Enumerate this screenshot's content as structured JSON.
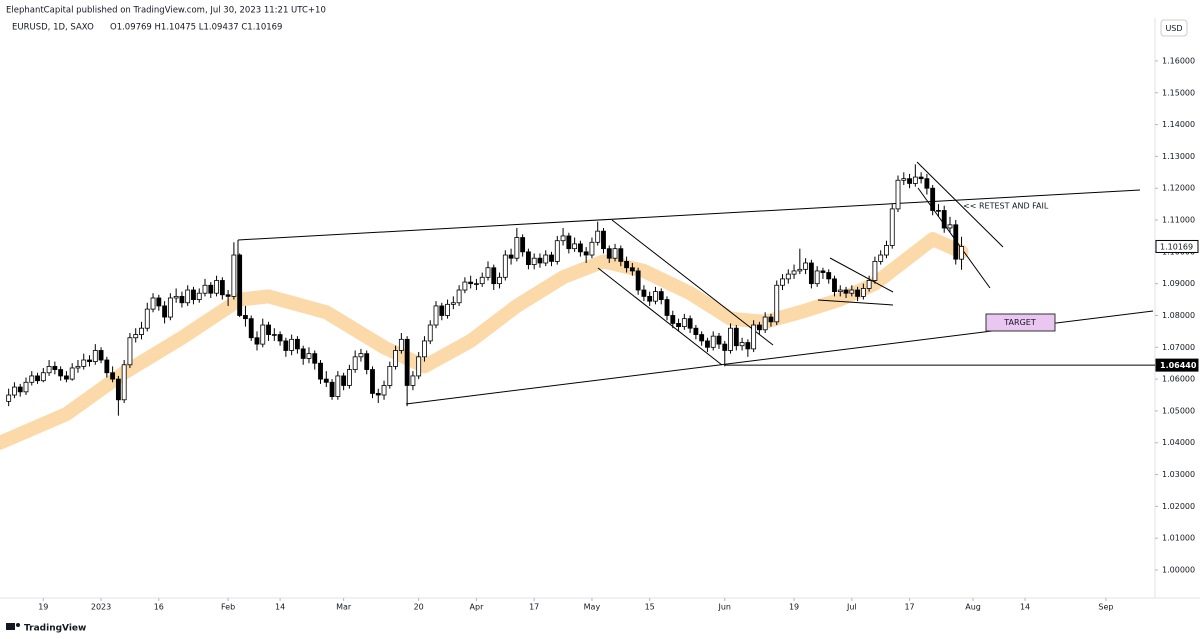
{
  "header": {
    "byline": "ElephantCapital published on TradingView.com, Jul 30, 2023 11:21 UTC+10",
    "symbol": "EURUSD, 1D, SAXO",
    "ohlc": "O1.09769  H1.10475  L1.09437  C1.10169",
    "currency": "USD"
  },
  "footer": {
    "brand": "TradingView"
  },
  "chart_data": {
    "type": "candlestick",
    "up_color": "#ffffff",
    "down_color": "#000000",
    "border_color": "#000000",
    "grid": false,
    "xlim": [
      -1.5,
      198.5
    ],
    "ylim": [
      0.9912,
      1.1735
    ],
    "yticks": [
      {
        "value": 1.0,
        "label": "1.00000"
      },
      {
        "value": 1.01,
        "label": "1.01000"
      },
      {
        "value": 1.02,
        "label": "1.02000"
      },
      {
        "value": 1.03,
        "label": "1.03000"
      },
      {
        "value": 1.04,
        "label": "1.04000"
      },
      {
        "value": 1.05,
        "label": "1.05000"
      },
      {
        "value": 1.06,
        "label": "1.06000"
      },
      {
        "value": 1.07,
        "label": "1.07000"
      },
      {
        "value": 1.08,
        "label": "1.08000"
      },
      {
        "value": 1.09,
        "label": "1.09000"
      },
      {
        "value": 1.1,
        "label": "1.10000"
      },
      {
        "value": 1.11,
        "label": "1.11000"
      },
      {
        "value": 1.12,
        "label": "1.12000"
      },
      {
        "value": 1.13,
        "label": "1.13000"
      },
      {
        "value": 1.14,
        "label": "1.14000"
      },
      {
        "value": 1.15,
        "label": "1.15000"
      },
      {
        "value": 1.16,
        "label": "1.16000"
      }
    ],
    "xticks": [
      {
        "value": 6,
        "label": "19"
      },
      {
        "value": 16,
        "label": "2023"
      },
      {
        "value": 26,
        "label": "16"
      },
      {
        "value": 38,
        "label": "Feb"
      },
      {
        "value": 47,
        "label": "14"
      },
      {
        "value": 58,
        "label": "Mar"
      },
      {
        "value": 71,
        "label": "20"
      },
      {
        "value": 81,
        "label": "Apr"
      },
      {
        "value": 91,
        "label": "17"
      },
      {
        "value": 101,
        "label": "May"
      },
      {
        "value": 111,
        "label": "15"
      },
      {
        "value": 124,
        "label": "Jun"
      },
      {
        "value": 136,
        "label": "19"
      },
      {
        "value": 146,
        "label": "Jul"
      },
      {
        "value": 156,
        "label": "17"
      },
      {
        "value": 167,
        "label": "Aug"
      },
      {
        "value": 176,
        "label": "14"
      },
      {
        "value": 190,
        "label": "Sep"
      }
    ],
    "candles": [
      [
        1.053,
        1.057,
        1.0515,
        1.055
      ],
      [
        1.055,
        1.059,
        1.054,
        1.0575
      ],
      [
        1.0575,
        1.0585,
        1.0545,
        1.056
      ],
      [
        1.056,
        1.0605,
        1.055,
        1.059
      ],
      [
        1.059,
        1.0625,
        1.058,
        1.061
      ],
      [
        1.061,
        1.062,
        1.0585,
        1.0595
      ],
      [
        1.0595,
        1.0635,
        1.059,
        1.062
      ],
      [
        1.062,
        1.066,
        1.061,
        1.064
      ],
      [
        1.064,
        1.0655,
        1.0615,
        1.063
      ],
      [
        1.063,
        1.064,
        1.0595,
        1.061
      ],
      [
        1.061,
        1.0625,
        1.059,
        1.06
      ],
      [
        1.06,
        1.065,
        1.0595,
        1.0635
      ],
      [
        1.0635,
        1.066,
        1.062,
        1.064
      ],
      [
        1.064,
        1.068,
        1.063,
        1.066
      ],
      [
        1.066,
        1.0675,
        1.064,
        1.0655
      ],
      [
        1.0655,
        1.071,
        1.0645,
        1.069
      ],
      [
        1.069,
        1.07,
        1.065,
        1.066
      ],
      [
        1.066,
        1.067,
        1.0605,
        1.062
      ],
      [
        1.062,
        1.064,
        1.059,
        1.06
      ],
      [
        1.06,
        1.061,
        1.0485,
        1.0535
      ],
      [
        1.0535,
        1.066,
        1.0525,
        1.0645
      ],
      [
        1.0645,
        1.0745,
        1.0635,
        1.073
      ],
      [
        1.073,
        1.076,
        1.0715,
        1.074
      ],
      [
        1.074,
        1.078,
        1.0725,
        1.076
      ],
      [
        1.076,
        1.084,
        1.075,
        1.082
      ],
      [
        1.082,
        1.087,
        1.081,
        1.0855
      ],
      [
        1.0855,
        1.0865,
        1.0815,
        1.083
      ],
      [
        1.083,
        1.0845,
        1.0775,
        1.0795
      ],
      [
        1.0795,
        1.087,
        1.0785,
        1.0855
      ],
      [
        1.0855,
        1.0885,
        1.084,
        1.086
      ],
      [
        1.086,
        1.0875,
        1.0825,
        1.084
      ],
      [
        1.084,
        1.0895,
        1.083,
        1.088
      ],
      [
        1.088,
        1.089,
        1.0835,
        1.085
      ],
      [
        1.085,
        1.0885,
        1.084,
        1.087
      ],
      [
        1.087,
        1.0915,
        1.086,
        1.0895
      ],
      [
        1.0895,
        1.0905,
        1.0855,
        1.087
      ],
      [
        1.087,
        1.0925,
        1.086,
        1.091
      ],
      [
        1.091,
        1.092,
        1.085,
        1.0865
      ],
      [
        1.0865,
        1.088,
        1.083,
        1.086
      ],
      [
        1.086,
        1.103,
        1.085,
        1.099
      ],
      [
        1.099,
        1.0995,
        1.0795,
        1.08
      ],
      [
        1.08,
        1.083,
        1.0765,
        1.079
      ],
      [
        1.079,
        1.08,
        1.072,
        1.073
      ],
      [
        1.073,
        1.075,
        1.069,
        1.071
      ],
      [
        1.071,
        1.079,
        1.07,
        1.077
      ],
      [
        1.077,
        1.078,
        1.072,
        1.074
      ],
      [
        1.074,
        1.076,
        1.072,
        1.074
      ],
      [
        1.074,
        1.075,
        1.0705,
        1.072
      ],
      [
        1.072,
        1.073,
        1.067,
        1.069
      ],
      [
        1.069,
        1.074,
        1.0675,
        1.0725
      ],
      [
        1.0725,
        1.0735,
        1.068,
        1.0695
      ],
      [
        1.0695,
        1.0705,
        1.0645,
        1.0665
      ],
      [
        1.0665,
        1.07,
        1.065,
        1.068
      ],
      [
        1.068,
        1.069,
        1.063,
        1.065
      ],
      [
        1.065,
        1.066,
        1.0585,
        1.06
      ],
      [
        1.06,
        1.0625,
        1.0575,
        1.059
      ],
      [
        1.059,
        1.06,
        1.0535,
        1.0545
      ],
      [
        1.0545,
        1.0625,
        1.0535,
        1.061
      ],
      [
        1.061,
        1.062,
        1.0565,
        1.058
      ],
      [
        1.058,
        1.0645,
        1.057,
        1.063
      ],
      [
        1.063,
        1.069,
        1.062,
        1.067
      ],
      [
        1.067,
        1.0695,
        1.0655,
        1.068
      ],
      [
        1.068,
        1.069,
        1.0615,
        1.063
      ],
      [
        1.063,
        1.064,
        1.054,
        1.0555
      ],
      [
        1.0555,
        1.057,
        1.0525,
        1.055
      ],
      [
        1.055,
        1.0595,
        1.0535,
        1.058
      ],
      [
        1.058,
        1.0655,
        1.057,
        1.064
      ],
      [
        1.064,
        1.0705,
        1.063,
        1.069
      ],
      [
        1.069,
        1.0745,
        1.068,
        1.0725
      ],
      [
        1.0725,
        1.0735,
        1.0515,
        1.058
      ],
      [
        1.058,
        1.0625,
        1.0565,
        1.061
      ],
      [
        1.061,
        1.0685,
        1.06,
        1.067
      ],
      [
        1.067,
        1.0735,
        1.0655,
        1.072
      ],
      [
        1.072,
        1.0785,
        1.071,
        1.077
      ],
      [
        1.077,
        1.0845,
        1.076,
        1.083
      ],
      [
        1.083,
        1.084,
        1.0785,
        1.08
      ],
      [
        1.08,
        1.085,
        1.079,
        1.0835
      ],
      [
        1.0835,
        1.086,
        1.082,
        1.084
      ],
      [
        1.084,
        1.0895,
        1.083,
        1.088
      ],
      [
        1.088,
        1.092,
        1.087,
        1.0905
      ],
      [
        1.0905,
        1.0925,
        1.0885,
        1.09
      ],
      [
        1.09,
        1.0915,
        1.088,
        1.09
      ],
      [
        1.09,
        1.0935,
        1.089,
        1.092
      ],
      [
        1.092,
        1.097,
        1.091,
        1.095
      ],
      [
        1.095,
        1.096,
        1.088,
        1.09
      ],
      [
        1.09,
        1.0935,
        1.0885,
        1.092
      ],
      [
        1.092,
        1.1005,
        1.091,
        1.099
      ],
      [
        1.099,
        1.101,
        1.096,
        1.098
      ],
      [
        1.098,
        1.1075,
        1.097,
        1.1045
      ],
      [
        1.1045,
        1.1055,
        1.0985,
        1.1
      ],
      [
        1.1,
        1.101,
        1.0945,
        1.096
      ],
      [
        1.096,
        1.0995,
        1.0945,
        1.098
      ],
      [
        1.098,
        1.0995,
        1.095,
        1.0965
      ],
      [
        1.0965,
        1.1005,
        1.0955,
        1.099
      ],
      [
        1.099,
        1.1,
        1.0955,
        1.097
      ],
      [
        1.097,
        1.105,
        1.096,
        1.1035
      ],
      [
        1.1035,
        1.1075,
        1.102,
        1.105
      ],
      [
        1.105,
        1.106,
        1.0995,
        1.101
      ],
      [
        1.101,
        1.1045,
        1.1,
        1.1025
      ],
      [
        1.1025,
        1.1035,
        1.0985,
        1.1
      ],
      [
        1.1,
        1.1015,
        1.0965,
        1.099
      ],
      [
        1.099,
        1.1045,
        1.098,
        1.103
      ],
      [
        1.103,
        1.1095,
        1.102,
        1.1065
      ],
      [
        1.1065,
        1.1075,
        1.0995,
        1.101
      ],
      [
        1.101,
        1.102,
        1.0965,
        1.098
      ],
      [
        1.098,
        1.1025,
        1.097,
        1.101
      ],
      [
        1.101,
        1.102,
        1.0955,
        1.097
      ],
      [
        1.097,
        1.0985,
        1.0935,
        1.095
      ],
      [
        1.095,
        1.0965,
        1.0925,
        1.094
      ],
      [
        1.094,
        1.095,
        1.0865,
        1.088
      ],
      [
        1.088,
        1.0895,
        1.0845,
        1.086
      ],
      [
        1.086,
        1.0875,
        1.083,
        1.0845
      ],
      [
        1.0845,
        1.089,
        1.0835,
        1.0875
      ],
      [
        1.0875,
        1.0885,
        1.0835,
        1.085
      ],
      [
        1.085,
        1.086,
        1.0785,
        1.08
      ],
      [
        1.08,
        1.0815,
        1.076,
        1.0775
      ],
      [
        1.0775,
        1.079,
        1.075,
        1.0765
      ],
      [
        1.0765,
        1.0805,
        1.0755,
        1.079
      ],
      [
        1.079,
        1.08,
        1.0745,
        1.076
      ],
      [
        1.076,
        1.077,
        1.0725,
        1.074
      ],
      [
        1.074,
        1.075,
        1.0705,
        1.072
      ],
      [
        1.072,
        1.073,
        1.0685,
        1.07
      ],
      [
        1.07,
        1.075,
        1.069,
        1.0735
      ],
      [
        1.0735,
        1.0745,
        1.0695,
        1.071
      ],
      [
        1.071,
        1.072,
        1.064,
        1.069
      ],
      [
        1.069,
        1.0775,
        1.068,
        1.076
      ],
      [
        1.076,
        1.077,
        1.069,
        1.0705
      ],
      [
        1.0705,
        1.073,
        1.069,
        1.0715
      ],
      [
        1.0715,
        1.0725,
        1.067,
        1.0695
      ],
      [
        1.0695,
        1.0785,
        1.0685,
        1.077
      ],
      [
        1.077,
        1.078,
        1.074,
        1.0755
      ],
      [
        1.0755,
        1.081,
        1.0745,
        1.0795
      ],
      [
        1.0795,
        1.0805,
        1.0765,
        1.078
      ],
      [
        1.078,
        1.091,
        1.077,
        1.0895
      ],
      [
        1.0895,
        1.093,
        1.088,
        1.0915
      ],
      [
        1.0915,
        1.0945,
        1.09,
        1.093
      ],
      [
        1.093,
        1.096,
        1.0915,
        1.094
      ],
      [
        1.094,
        1.101,
        1.093,
        1.0945
      ],
      [
        1.0945,
        1.098,
        1.093,
        1.0965
      ],
      [
        1.0965,
        1.0975,
        1.0885,
        1.09
      ],
      [
        1.09,
        1.0955,
        1.089,
        1.094
      ],
      [
        1.094,
        1.095,
        1.0915,
        1.0935
      ],
      [
        1.0935,
        1.0945,
        1.09,
        1.0915
      ],
      [
        1.0915,
        1.0925,
        1.086,
        1.0875
      ],
      [
        1.0875,
        1.0895,
        1.086,
        1.088
      ],
      [
        1.088,
        1.089,
        1.0855,
        1.087
      ],
      [
        1.087,
        1.0895,
        1.086,
        1.088
      ],
      [
        1.088,
        1.089,
        1.0845,
        1.086
      ],
      [
        1.086,
        1.09,
        1.085,
        1.0885
      ],
      [
        1.0885,
        1.0925,
        1.0875,
        1.091
      ],
      [
        1.091,
        1.0985,
        1.09,
        1.097
      ],
      [
        1.097,
        1.1005,
        1.096,
        1.099
      ],
      [
        1.099,
        1.1035,
        1.098,
        1.102
      ],
      [
        1.102,
        1.115,
        1.101,
        1.1135
      ],
      [
        1.1135,
        1.124,
        1.1125,
        1.1225
      ],
      [
        1.1225,
        1.125,
        1.121,
        1.123
      ],
      [
        1.123,
        1.1245,
        1.12,
        1.1215
      ],
      [
        1.1215,
        1.1275,
        1.1205,
        1.1235
      ],
      [
        1.1235,
        1.125,
        1.1215,
        1.123
      ],
      [
        1.123,
        1.1245,
        1.118,
        1.12
      ],
      [
        1.12,
        1.121,
        1.1115,
        1.113
      ],
      [
        1.113,
        1.115,
        1.111,
        1.113
      ],
      [
        1.113,
        1.1145,
        1.106,
        1.1075
      ],
      [
        1.1075,
        1.111,
        1.106,
        1.1085
      ],
      [
        1.1085,
        1.11,
        1.096,
        1.0977
      ],
      [
        1.09769,
        1.10475,
        1.09437,
        1.10169
      ]
    ],
    "ribbon": {
      "color": "#fcd9a8",
      "x": [
        -1.5,
        10,
        20,
        30,
        40,
        45,
        55,
        65,
        72,
        80,
        88,
        96,
        103,
        110,
        118,
        125,
        131,
        137,
        144,
        150,
        155,
        160,
        165
      ],
      "values": [
        1.04,
        1.049,
        1.062,
        1.073,
        1.085,
        1.086,
        1.081,
        1.07,
        1.064,
        1.072,
        1.083,
        1.092,
        1.097,
        1.094,
        1.087,
        1.079,
        1.078,
        1.081,
        1.085,
        1.09,
        1.097,
        1.104,
        1.1
      ]
    },
    "levels": [
      {
        "value": 1.0644,
        "label": "1.06440",
        "from": 124,
        "style": "dark"
      },
      {
        "value": 1.10169,
        "label": "1.10169",
        "from": 165,
        "style": "light"
      }
    ],
    "annotations": {
      "retest": "<< RETEST AND FAIL",
      "target": "TARGET"
    }
  }
}
